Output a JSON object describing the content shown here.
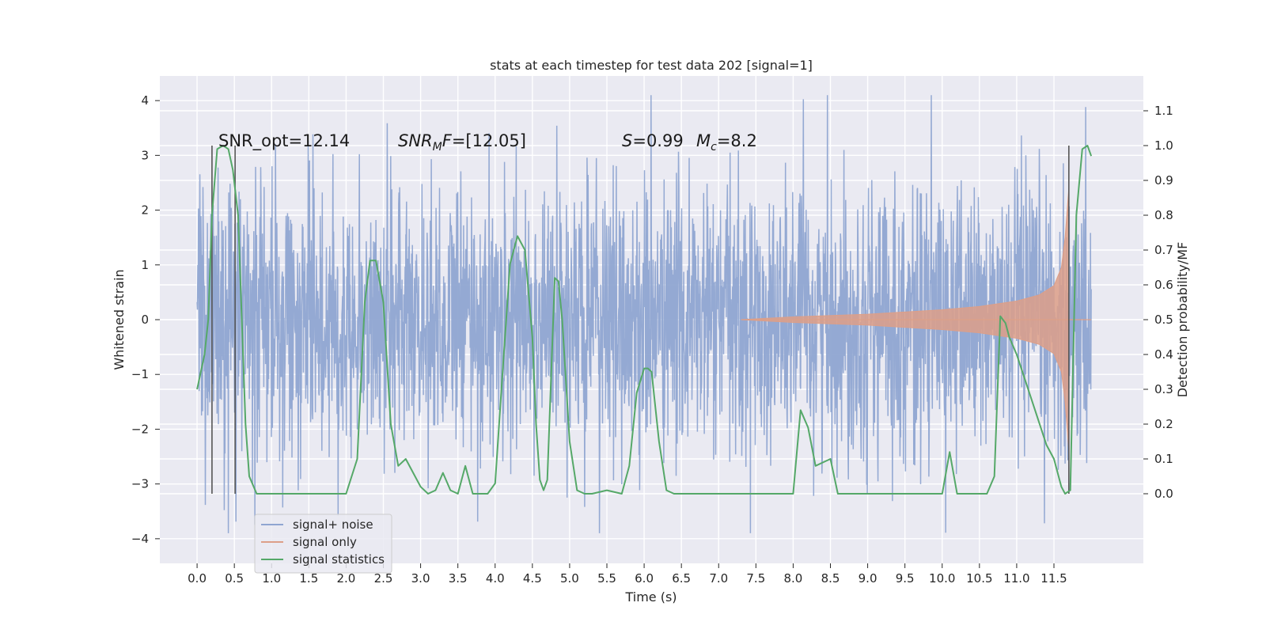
{
  "chart_data": {
    "type": "line",
    "title": "stats at each timestep for test data 202 [signal=1]",
    "xlabel": "Time (s)",
    "ylabel": "Whitened strain",
    "y2label": "Detection probability/MF",
    "xlim": [
      -0.5,
      12.7
    ],
    "ylim": [
      -4.45,
      4.45
    ],
    "y2lim": [
      -0.2,
      1.2
    ],
    "x_ticks": [
      "0.0",
      "0.5",
      "1.0",
      "1.5",
      "2.0",
      "2.5",
      "3.0",
      "3.5",
      "4.0",
      "4.5",
      "5.0",
      "5.5",
      "6.0",
      "6.5",
      "7.0",
      "7.5",
      "8.0",
      "8.5",
      "9.0",
      "9.5",
      "10.0",
      "10.5",
      "11.0",
      "11.5"
    ],
    "y_ticks": [
      "4",
      "3",
      "2",
      "1",
      "0",
      "−1",
      "−2",
      "−3",
      "−4"
    ],
    "y2_ticks": [
      "1.1",
      "1.0",
      "0.9",
      "0.8",
      "0.7",
      "0.6",
      "0.5",
      "0.4",
      "0.3",
      "0.2",
      "0.1",
      "0.0"
    ],
    "grid": true,
    "annotations": {
      "snr_opt": "SNR_opt=12.14",
      "snr_mf_a": "SNR",
      "snr_mf_sub": "M",
      "snr_mf_b": "F",
      "snr_mf_c": "=[12.05]",
      "s_sym": "S",
      "s_val": "=0.99",
      "mc_sym": "M",
      "mc_sub": "c",
      "mc_val": "=8.2"
    },
    "vertical_markers": [
      0.2,
      0.51,
      11.7
    ],
    "legend": {
      "placement": "lower-left",
      "entries": [
        "signal+ noise",
        "signal only",
        "signal statistics"
      ]
    },
    "series": [
      {
        "name": "signal+ noise",
        "color": "#8fa5d1",
        "x_range": [
          0.0,
          12.0
        ],
        "typical_band": [
          -1.3,
          1.3
        ],
        "peak_range": [
          -3.9,
          4.1
        ]
      },
      {
        "name": "signal only",
        "color": "#dd9f88",
        "envelope": {
          "x": [
            7.3,
            8.0,
            9.0,
            10.0,
            10.5,
            11.0,
            11.3,
            11.5,
            11.6,
            11.65,
            11.7
          ],
          "amp": [
            0.0,
            0.05,
            0.1,
            0.18,
            0.24,
            0.34,
            0.45,
            0.62,
            0.95,
            1.5,
            2.4
          ]
        }
      },
      {
        "name": "signal statistics",
        "color": "#55a868",
        "x": [
          0.0,
          0.1,
          0.15,
          0.2,
          0.27,
          0.35,
          0.42,
          0.48,
          0.55,
          0.6,
          0.65,
          0.7,
          0.8,
          1.0,
          1.5,
          2.0,
          2.15,
          2.25,
          2.32,
          2.4,
          2.5,
          2.6,
          2.7,
          2.8,
          2.9,
          3.0,
          3.1,
          3.2,
          3.3,
          3.4,
          3.5,
          3.6,
          3.7,
          3.8,
          3.9,
          4.0,
          4.1,
          4.2,
          4.3,
          4.4,
          4.5,
          4.55,
          4.6,
          4.65,
          4.7,
          4.8,
          4.85,
          4.9,
          5.0,
          5.1,
          5.2,
          5.3,
          5.5,
          5.7,
          5.8,
          5.9,
          6.0,
          6.05,
          6.1,
          6.2,
          6.3,
          6.4,
          6.6,
          7.0,
          7.5,
          8.0,
          8.1,
          8.2,
          8.3,
          8.4,
          8.5,
          8.6,
          8.8,
          9.0,
          9.5,
          10.0,
          10.1,
          10.2,
          10.4,
          10.6,
          10.7,
          10.78,
          10.85,
          10.9,
          11.0,
          11.2,
          11.4,
          11.5,
          11.6,
          11.65,
          11.72,
          11.8,
          11.88,
          11.95,
          12.0
        ],
        "y": [
          0.3,
          0.4,
          0.5,
          0.8,
          0.99,
          1.0,
          0.99,
          0.93,
          0.8,
          0.5,
          0.2,
          0.05,
          0.0,
          0.0,
          0.0,
          0.0,
          0.1,
          0.55,
          0.67,
          0.67,
          0.55,
          0.2,
          0.08,
          0.1,
          0.06,
          0.02,
          0.0,
          0.01,
          0.06,
          0.01,
          0.0,
          0.08,
          0.0,
          0.0,
          0.0,
          0.03,
          0.35,
          0.66,
          0.74,
          0.7,
          0.45,
          0.2,
          0.04,
          0.01,
          0.04,
          0.62,
          0.61,
          0.5,
          0.15,
          0.01,
          0.0,
          0.0,
          0.01,
          0.0,
          0.08,
          0.29,
          0.36,
          0.36,
          0.35,
          0.15,
          0.01,
          0.0,
          0.0,
          0.0,
          0.0,
          0.0,
          0.24,
          0.19,
          0.08,
          0.09,
          0.1,
          0.0,
          0.0,
          0.0,
          0.0,
          0.0,
          0.12,
          0.0,
          0.0,
          0.0,
          0.05,
          0.51,
          0.49,
          0.45,
          0.4,
          0.27,
          0.14,
          0.1,
          0.02,
          0.0,
          0.01,
          0.8,
          0.99,
          1.0,
          0.97
        ]
      }
    ]
  }
}
